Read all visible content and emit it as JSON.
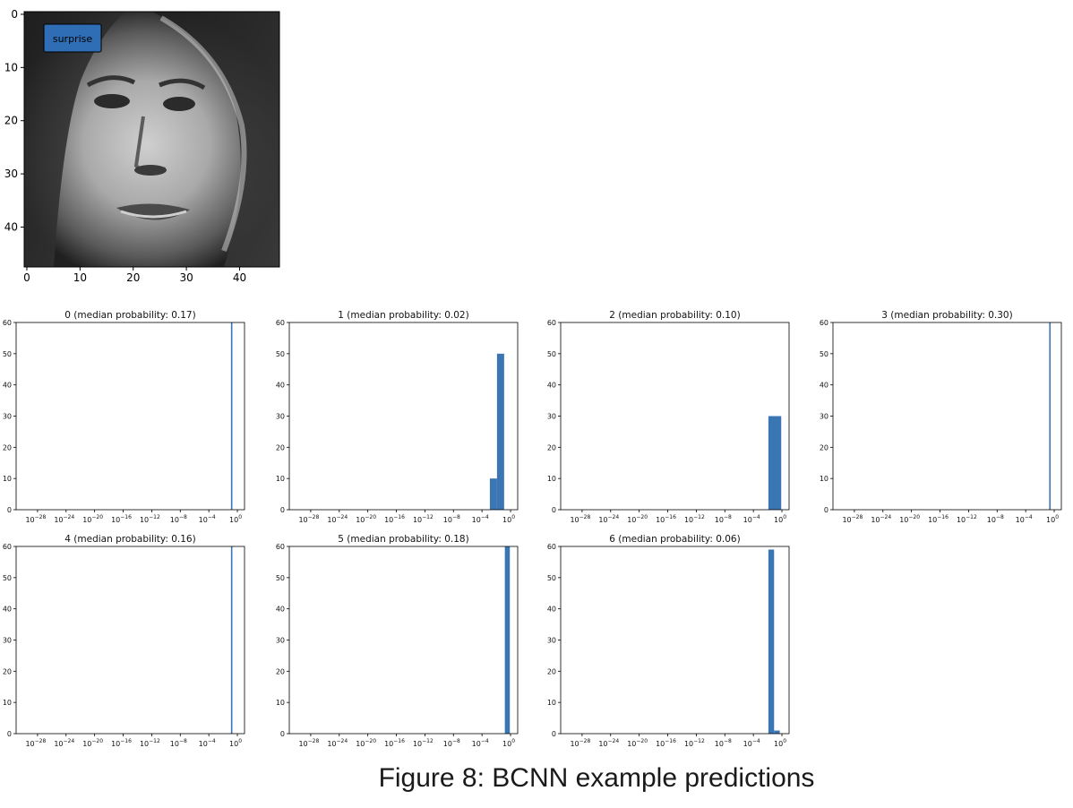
{
  "image_panel": {
    "label": "surprise",
    "x_ticks": [
      0,
      10,
      20,
      30,
      40
    ],
    "y_ticks": [
      0,
      10,
      20,
      30,
      40
    ],
    "label_color": "#2f6db5"
  },
  "chart_data": [
    {
      "type": "bar",
      "title": "0 (median probability: 0.17)",
      "x_scale": "log",
      "xlim_exp": [
        -31,
        1
      ],
      "ylim": [
        0,
        60
      ],
      "y_ticks": [
        0,
        10,
        20,
        30,
        40,
        50,
        60
      ],
      "x_tick_exps": [
        -28,
        -24,
        -20,
        -16,
        -12,
        -8,
        -4,
        0
      ],
      "bars": [
        {
          "x_start_exp": -0.9,
          "x_end_exp": -0.7,
          "value": 60
        }
      ]
    },
    {
      "type": "bar",
      "title": "1 (median probability: 0.02)",
      "x_scale": "log",
      "xlim_exp": [
        -31,
        1
      ],
      "ylim": [
        0,
        60
      ],
      "y_ticks": [
        0,
        10,
        20,
        30,
        40,
        50,
        60
      ],
      "x_tick_exps": [
        -28,
        -24,
        -20,
        -16,
        -12,
        -8,
        -4,
        0
      ],
      "bars": [
        {
          "x_start_exp": -2.9,
          "x_end_exp": -1.9,
          "value": 10
        },
        {
          "x_start_exp": -1.9,
          "x_end_exp": -0.9,
          "value": 50
        }
      ]
    },
    {
      "type": "bar",
      "title": "2 (median probability: 0.10)",
      "x_scale": "log",
      "xlim_exp": [
        -31,
        1
      ],
      "ylim": [
        0,
        60
      ],
      "y_ticks": [
        0,
        10,
        20,
        30,
        40,
        50,
        60
      ],
      "x_tick_exps": [
        -28,
        -24,
        -20,
        -16,
        -12,
        -8,
        -4,
        0
      ],
      "bars": [
        {
          "x_start_exp": -1.9,
          "x_end_exp": -0.1,
          "value": 30
        }
      ]
    },
    {
      "type": "bar",
      "title": "3 (median probability: 0.30)",
      "x_scale": "log",
      "xlim_exp": [
        -31,
        1
      ],
      "ylim": [
        0,
        60
      ],
      "y_ticks": [
        0,
        10,
        20,
        30,
        40,
        50,
        60
      ],
      "x_tick_exps": [
        -28,
        -24,
        -20,
        -16,
        -12,
        -8,
        -4,
        0
      ],
      "bars": [
        {
          "x_start_exp": -0.7,
          "x_end_exp": -0.5,
          "value": 60
        }
      ]
    },
    {
      "type": "bar",
      "title": "4 (median probability: 0.16)",
      "x_scale": "log",
      "xlim_exp": [
        -31,
        1
      ],
      "ylim": [
        0,
        60
      ],
      "y_ticks": [
        0,
        10,
        20,
        30,
        40,
        50,
        60
      ],
      "x_tick_exps": [
        -28,
        -24,
        -20,
        -16,
        -12,
        -8,
        -4,
        0
      ],
      "bars": [
        {
          "x_start_exp": -0.9,
          "x_end_exp": -0.7,
          "value": 60
        }
      ]
    },
    {
      "type": "bar",
      "title": "5 (median probability: 0.18)",
      "x_scale": "log",
      "xlim_exp": [
        -31,
        1
      ],
      "ylim": [
        0,
        60
      ],
      "y_ticks": [
        0,
        10,
        20,
        30,
        40,
        50,
        60
      ],
      "x_tick_exps": [
        -28,
        -24,
        -20,
        -16,
        -12,
        -8,
        -4,
        0
      ],
      "bars": [
        {
          "x_start_exp": -0.8,
          "x_end_exp": -0.1,
          "value": 60
        }
      ]
    },
    {
      "type": "bar",
      "title": "6 (median probability: 0.06)",
      "x_scale": "log",
      "xlim_exp": [
        -31,
        1
      ],
      "ylim": [
        0,
        60
      ],
      "y_ticks": [
        0,
        10,
        20,
        30,
        40,
        50,
        60
      ],
      "x_tick_exps": [
        -28,
        -24,
        -20,
        -16,
        -12,
        -8,
        -4,
        0
      ],
      "bars": [
        {
          "x_start_exp": -1.9,
          "x_end_exp": -1.1,
          "value": 59
        },
        {
          "x_start_exp": -1.1,
          "x_end_exp": -0.3,
          "value": 1
        }
      ]
    }
  ],
  "bar_color": "#3a75b4",
  "caption": "Figure 8: BCNN example predictions"
}
